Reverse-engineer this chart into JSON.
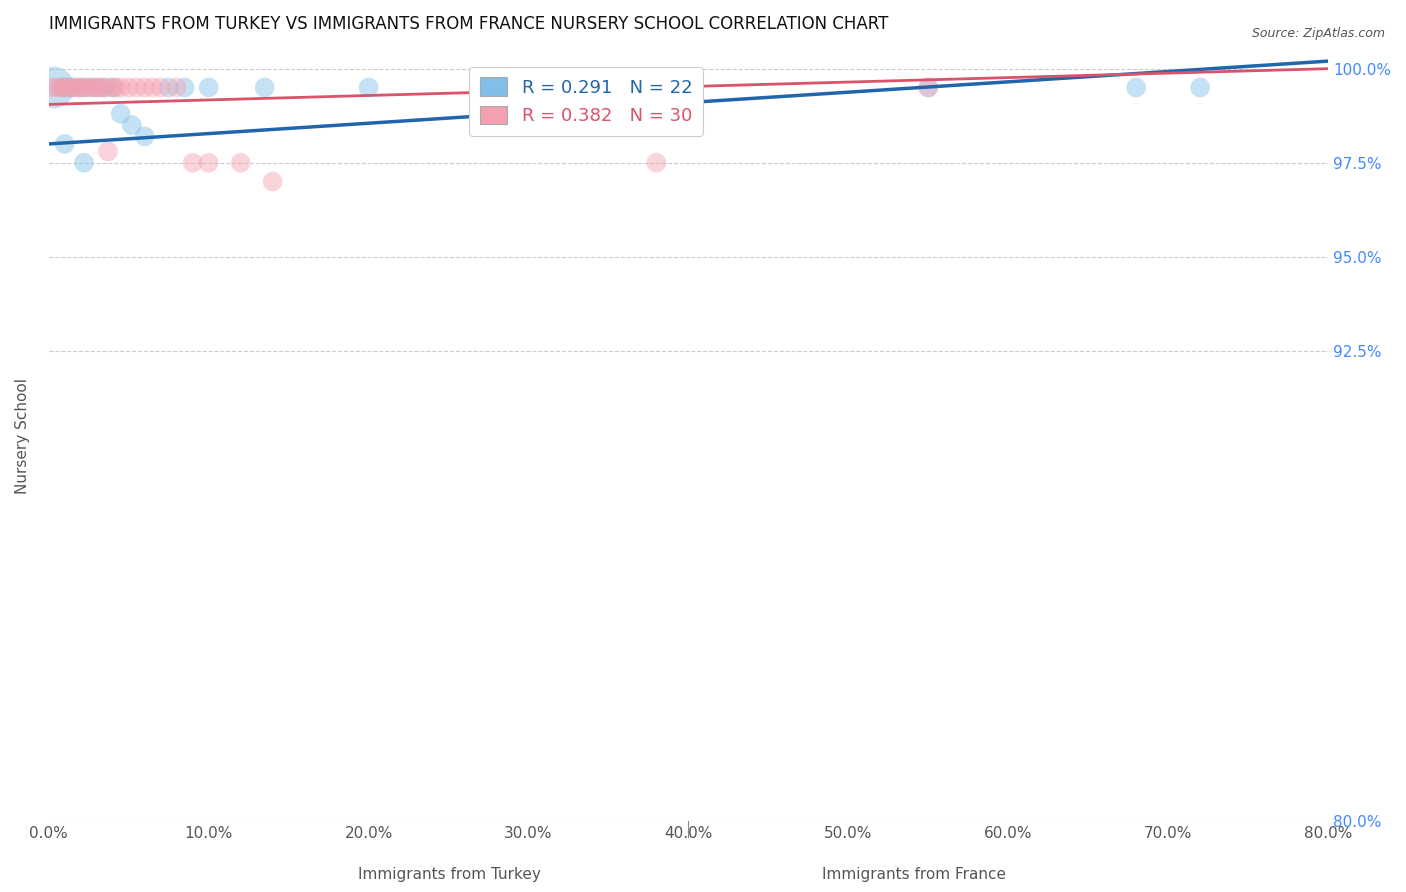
{
  "title": "IMMIGRANTS FROM TURKEY VS IMMIGRANTS FROM FRANCE NURSERY SCHOOL CORRELATION CHART",
  "source": "Source: ZipAtlas.com",
  "ylabel": "Nursery School",
  "xlabel_turkey": "Immigrants from Turkey",
  "xlabel_france": "Immigrants from France",
  "xlim": [
    0.0,
    80.0
  ],
  "ylim": [
    80.0,
    100.5
  ],
  "yticks": [
    80.0,
    92.5,
    95.0,
    97.5,
    100.0
  ],
  "xticks": [
    0.0,
    10.0,
    20.0,
    30.0,
    40.0,
    50.0,
    60.0,
    70.0,
    80.0
  ],
  "turkey_R": 0.291,
  "turkey_N": 22,
  "france_R": 0.382,
  "france_N": 30,
  "turkey_color": "#7fbfea",
  "france_color": "#f4a0b0",
  "turkey_line_color": "#2166ac",
  "france_line_color": "#d9536a",
  "turkey_x": [
    0.3,
    0.8,
    1.2,
    1.5,
    2.0,
    2.5,
    3.0,
    3.5,
    4.0,
    4.5,
    5.2,
    6.0,
    7.5,
    8.5,
    10.0,
    13.5,
    20.0,
    55.0,
    68.0,
    72.0,
    1.0,
    2.2
  ],
  "turkey_y": [
    99.5,
    99.5,
    99.5,
    99.5,
    99.5,
    99.5,
    99.5,
    99.5,
    99.5,
    98.8,
    98.5,
    98.2,
    99.5,
    99.5,
    99.5,
    99.5,
    99.5,
    99.5,
    99.5,
    99.5,
    98.0,
    97.5
  ],
  "turkey_sizes": [
    900,
    200,
    200,
    200,
    200,
    200,
    200,
    200,
    200,
    200,
    200,
    200,
    200,
    200,
    200,
    200,
    200,
    200,
    200,
    200,
    200,
    200
  ],
  "france_x": [
    0.2,
    0.5,
    0.8,
    1.0,
    1.3,
    1.5,
    1.8,
    2.0,
    2.2,
    2.5,
    2.8,
    3.0,
    3.3,
    3.5,
    3.7,
    4.0,
    4.2,
    4.5,
    5.0,
    5.5,
    6.0,
    6.5,
    7.0,
    8.0,
    9.0,
    10.0,
    12.0,
    14.0,
    38.0,
    55.0
  ],
  "france_y": [
    99.5,
    99.5,
    99.5,
    99.5,
    99.5,
    99.5,
    99.5,
    99.5,
    99.5,
    99.5,
    99.5,
    99.5,
    99.5,
    99.5,
    97.8,
    99.5,
    99.5,
    99.5,
    99.5,
    99.5,
    99.5,
    99.5,
    99.5,
    99.5,
    97.5,
    97.5,
    97.5,
    97.0,
    97.5,
    99.5
  ],
  "france_sizes": [
    200,
    200,
    200,
    200,
    200,
    200,
    200,
    200,
    200,
    200,
    200,
    200,
    200,
    200,
    200,
    200,
    200,
    200,
    200,
    200,
    200,
    200,
    200,
    200,
    200,
    200,
    200,
    200,
    200,
    200
  ],
  "background_color": "#ffffff",
  "grid_color": "#cccccc",
  "title_fontsize": 12,
  "label_fontsize": 11,
  "tick_fontsize": 11,
  "legend_fontsize": 13
}
